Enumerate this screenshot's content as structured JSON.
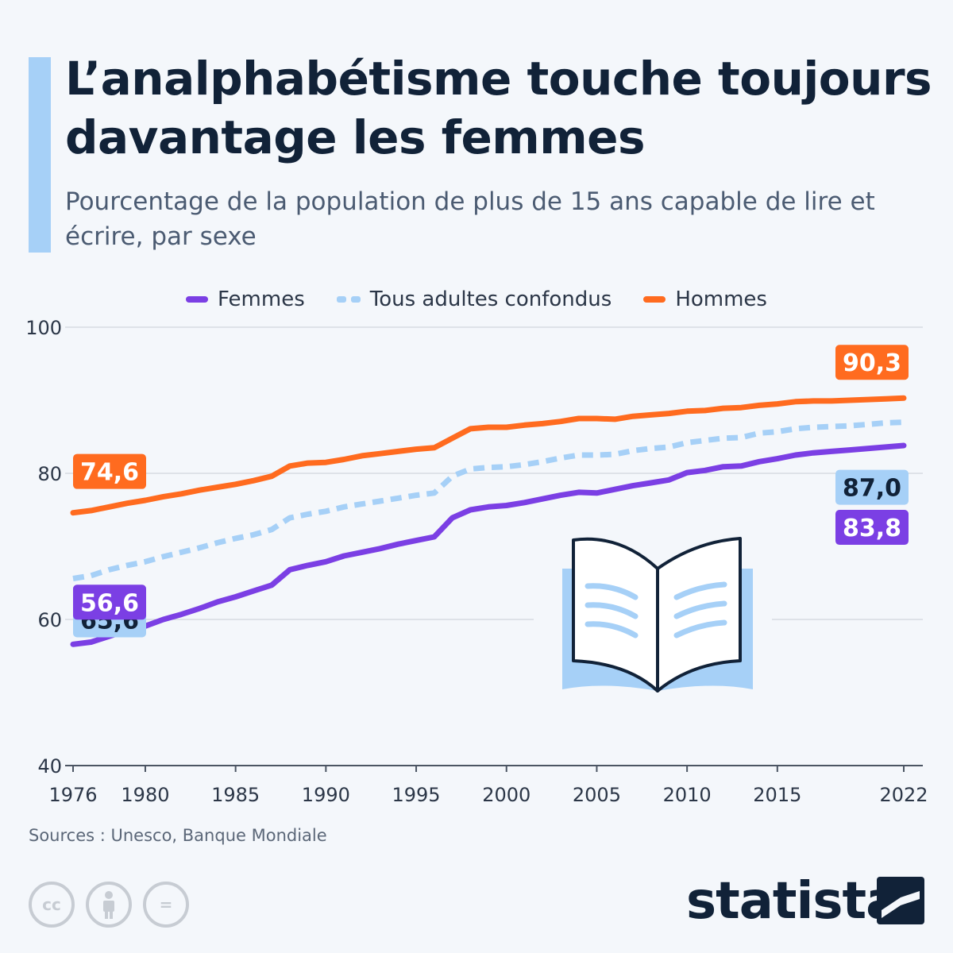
{
  "header": {
    "title": "L’analphabétisme touche toujours davantage les femmes",
    "subtitle": "Pourcentage de la population de plus de 15 ans capable de lire et écrire, par sexe"
  },
  "colors": {
    "femmes": "#7b3fe4",
    "tous": "#a6d0f7",
    "hommes": "#ff6b1f",
    "text_dark": "#112238",
    "grid": "#c9ced6"
  },
  "chart_data": {
    "type": "line",
    "ylim": [
      40,
      100
    ],
    "y_ticks": [
      "40",
      "60",
      "80",
      "100"
    ],
    "x_ticks": [
      "1976",
      "1980",
      "1985",
      "1990",
      "1995",
      "2000",
      "2005",
      "2010",
      "2015",
      "2022"
    ],
    "grid": true,
    "legend_position": "top-center",
    "x": [
      1976,
      1977,
      1978,
      1979,
      1980,
      1981,
      1982,
      1983,
      1984,
      1985,
      1986,
      1987,
      1988,
      1989,
      1990,
      1991,
      1992,
      1993,
      1994,
      1995,
      1996,
      1997,
      1998,
      1999,
      2000,
      2001,
      2002,
      2003,
      2004,
      2005,
      2006,
      2007,
      2008,
      2009,
      2010,
      2011,
      2012,
      2013,
      2014,
      2015,
      2016,
      2017,
      2018,
      2019,
      2020,
      2021,
      2022
    ],
    "series": [
      {
        "name": "Femmes",
        "style": "solid",
        "color": "#7b3fe4",
        "values": [
          56.6,
          56.9,
          57.7,
          58.5,
          59.1,
          60.0,
          60.7,
          61.5,
          62.4,
          63.1,
          63.9,
          64.7,
          66.8,
          67.4,
          67.9,
          68.7,
          69.2,
          69.7,
          70.3,
          70.8,
          71.3,
          73.9,
          75.0,
          75.4,
          75.6,
          76.0,
          76.5,
          77.0,
          77.4,
          77.3,
          77.8,
          78.3,
          78.7,
          79.1,
          80.1,
          80.4,
          80.9,
          81.0,
          81.6,
          82.0,
          82.5,
          82.8,
          83.0,
          83.2,
          83.4,
          83.6,
          83.8
        ],
        "start_label": "56,6",
        "end_label": "83,8"
      },
      {
        "name": "Tous adultes confondus",
        "style": "dashed",
        "color": "#a6d0f7",
        "values": [
          65.6,
          66.0,
          66.8,
          67.4,
          67.9,
          68.6,
          69.2,
          69.8,
          70.5,
          71.1,
          71.6,
          72.3,
          73.9,
          74.4,
          74.8,
          75.4,
          75.8,
          76.2,
          76.6,
          77.0,
          77.3,
          79.6,
          80.6,
          80.8,
          80.9,
          81.2,
          81.6,
          82.1,
          82.5,
          82.5,
          82.6,
          83.1,
          83.4,
          83.6,
          84.2,
          84.5,
          84.8,
          84.9,
          85.5,
          85.7,
          86.1,
          86.3,
          86.4,
          86.5,
          86.7,
          86.9,
          87.0
        ],
        "start_label": "65,6",
        "end_label": "87,0"
      },
      {
        "name": "Hommes",
        "style": "solid",
        "color": "#ff6b1f",
        "values": [
          74.6,
          74.9,
          75.4,
          75.9,
          76.3,
          76.8,
          77.2,
          77.7,
          78.1,
          78.5,
          79.0,
          79.6,
          81.0,
          81.4,
          81.5,
          81.9,
          82.4,
          82.7,
          83.0,
          83.3,
          83.5,
          84.8,
          86.1,
          86.3,
          86.3,
          86.6,
          86.8,
          87.1,
          87.5,
          87.5,
          87.4,
          87.8,
          88.0,
          88.2,
          88.5,
          88.6,
          88.9,
          89.0,
          89.3,
          89.5,
          89.8,
          89.9,
          89.9,
          90.0,
          90.1,
          90.2,
          90.3
        ],
        "start_label": "74,6",
        "end_label": "90,3"
      }
    ]
  },
  "source": "Sources : Unesco, Banque Mondiale",
  "footer": {
    "brand": "statista",
    "icons": [
      "creative-commons-icon",
      "attribution-icon",
      "no-derivatives-icon"
    ],
    "cc_text": "cc",
    "nd_text": "="
  }
}
